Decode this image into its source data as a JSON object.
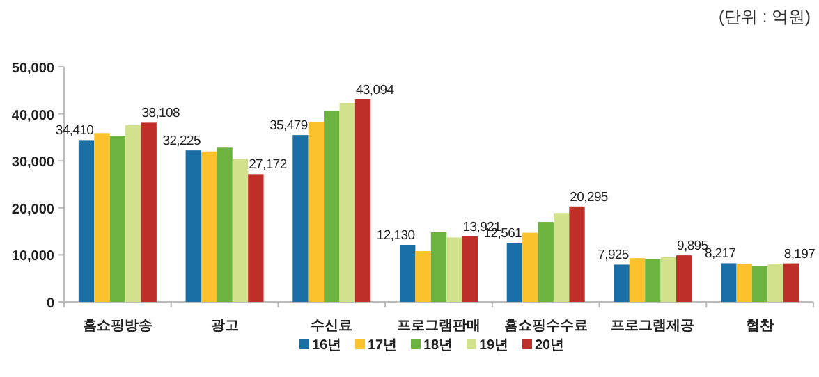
{
  "chart_data": {
    "type": "bar",
    "annotations": [
      "(단위 : 억원)"
    ],
    "categories": [
      "홈쇼핑방송",
      "광고",
      "수신료",
      "프로그램판매",
      "홈쇼핑수수료",
      "프로그램제공",
      "협찬"
    ],
    "series": [
      {
        "name": "16년",
        "color": "#1a70a6",
        "values": [
          34410,
          32225,
          35479,
          12130,
          12561,
          7925,
          8217
        ],
        "value_labels": [
          "34,410",
          "32,225",
          "35,479",
          "12,130",
          "12,561",
          "7,925",
          "8,217"
        ]
      },
      {
        "name": "17년",
        "color": "#fbc22e",
        "values": [
          35900,
          32000,
          38300,
          10800,
          14700,
          9300,
          8100
        ]
      },
      {
        "name": "18년",
        "color": "#6cb33f",
        "values": [
          35300,
          32800,
          40600,
          14800,
          17000,
          9100,
          7600
        ]
      },
      {
        "name": "19년",
        "color": "#d2e28c",
        "values": [
          37600,
          30400,
          42300,
          13700,
          18900,
          9500,
          8000
        ]
      },
      {
        "name": "20년",
        "color": "#bf2f2a",
        "values": [
          38108,
          27172,
          43094,
          13921,
          20295,
          9895,
          8197
        ],
        "value_labels": [
          "38,108",
          "27,172",
          "43,094",
          "13,921",
          "20,295",
          "9,895",
          "8,197"
        ]
      }
    ],
    "ylim": [
      0,
      50000
    ],
    "yticks": [
      {
        "value": 0,
        "label": "0"
      },
      {
        "value": 10000,
        "label": "10,000"
      },
      {
        "value": 20000,
        "label": "20,000"
      },
      {
        "value": 30000,
        "label": "30,000"
      },
      {
        "value": 40000,
        "label": "40,000"
      },
      {
        "value": 50000,
        "label": "50,000"
      }
    ],
    "grid": false,
    "legend": "bottom"
  }
}
